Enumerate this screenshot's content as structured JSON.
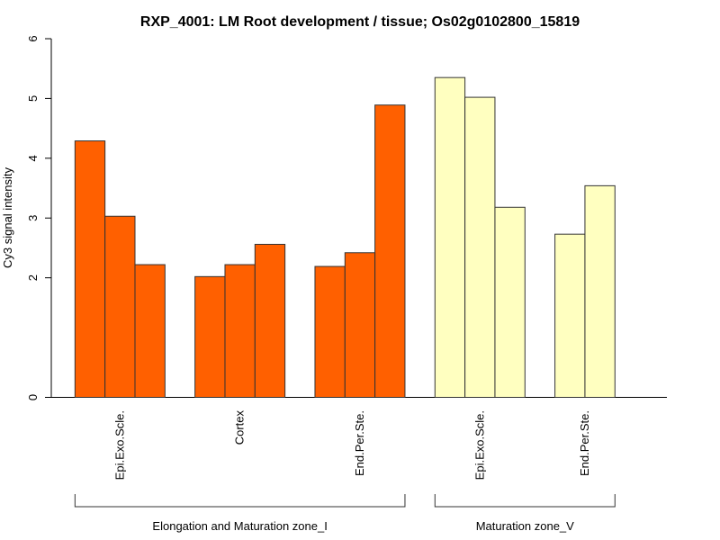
{
  "chart_data": {
    "type": "bar",
    "title": "RXP_4001: LM Root development / tissue; Os02g0102800_15819",
    "xlabel": "",
    "ylabel": "Cy3 signal intensity",
    "ylim": [
      0,
      6
    ],
    "yticks": [
      "0",
      "2",
      "3",
      "4",
      "5",
      "6"
    ],
    "grid": false,
    "categories": [
      "Epi.Exo.Scle.",
      "Cortex",
      "End.Per.Ste.",
      "Epi.Exo.Scle.",
      "End.Per.Ste."
    ],
    "groups": [
      {
        "label": "Epi.Exo.Scle.",
        "zone": 0,
        "values": [
          4.29,
          3.03,
          2.22
        ],
        "color": "#FF6000"
      },
      {
        "label": "Cortex",
        "zone": 0,
        "values": [
          2.02,
          2.22,
          2.56
        ],
        "color": "#FF6000"
      },
      {
        "label": "End.Per.Ste.",
        "zone": 0,
        "values": [
          2.19,
          2.42,
          4.89
        ],
        "color": "#FF6000"
      },
      {
        "label": "Epi.Exo.Scle.",
        "zone": 1,
        "values": [
          5.35,
          5.02,
          3.18
        ],
        "color": "#FFFFC0"
      },
      {
        "label": "End.Per.Ste.",
        "zone": 1,
        "values": [
          2.73,
          3.54
        ],
        "color": "#FFFFC0"
      }
    ],
    "zones": [
      "Elongation and Maturation zone_I",
      "Maturation zone_V"
    ]
  }
}
